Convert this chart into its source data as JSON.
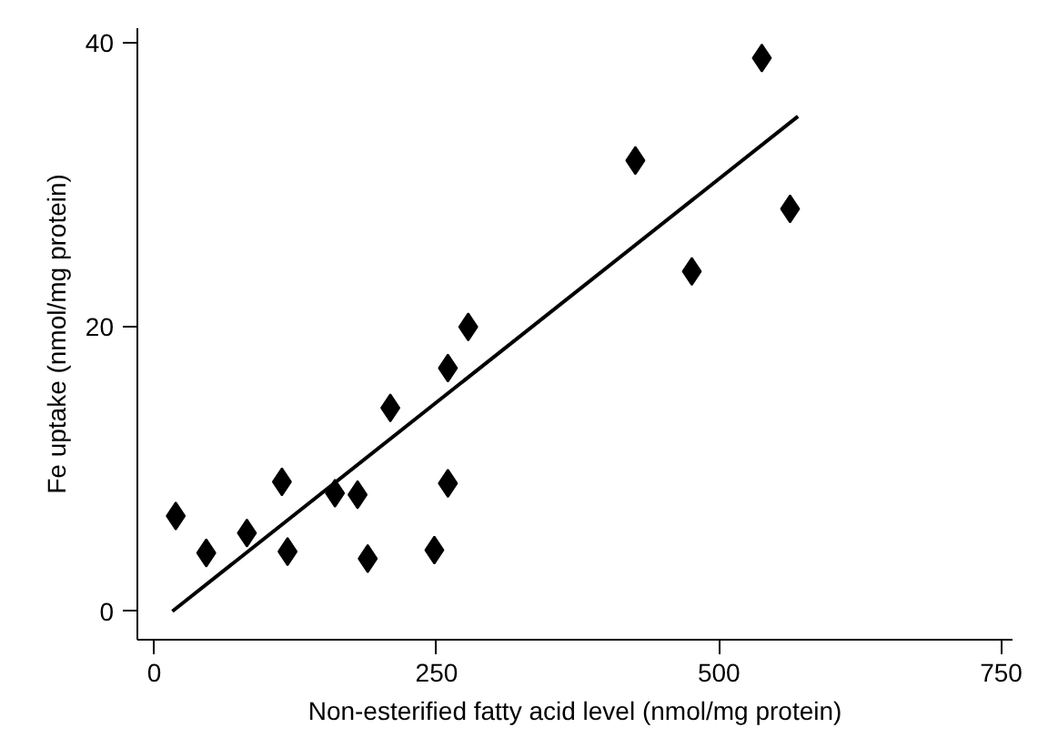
{
  "chart_data": {
    "type": "scatter",
    "xlabel": "Non-esterified fatty acid level (nmol/mg protein)",
    "ylabel": "Fe uptake (nmol/mg protein)",
    "xlim": [
      -15,
      760
    ],
    "ylim": [
      -2,
      41
    ],
    "xticks": [
      0,
      250,
      500,
      750
    ],
    "yticks": [
      0,
      20,
      40
    ],
    "grid": false,
    "marker": "diamond",
    "series": [
      {
        "color": "#000000",
        "x": [
          19,
          46,
          82,
          113,
          118,
          160,
          180,
          189,
          209,
          248,
          260,
          260,
          278,
          426,
          476,
          538,
          563
        ],
        "values": [
          6.7,
          4.1,
          5.5,
          9.1,
          4.2,
          8.3,
          8.2,
          3.7,
          14.3,
          4.3,
          17.1,
          9.0,
          20.0,
          31.7,
          23.9,
          38.9,
          28.3
        ]
      },
      {
        "type": "line",
        "color": "#000000",
        "line_style": "solid",
        "marker": "none",
        "x": [
          16,
          570
        ],
        "values": [
          0,
          34.8
        ]
      }
    ]
  }
}
